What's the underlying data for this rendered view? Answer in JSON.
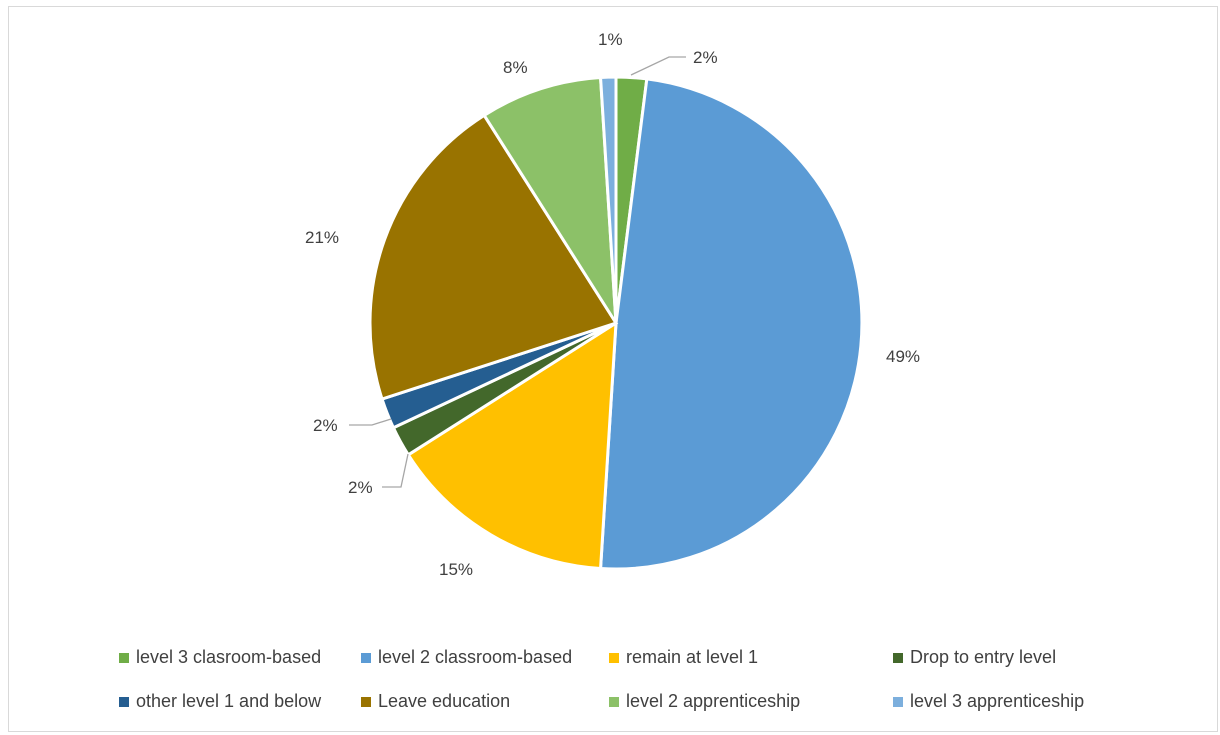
{
  "chart_data": {
    "type": "pie",
    "start_angle_deg": 0,
    "direction": "clockwise",
    "slices": [
      {
        "name": "level 3 clasroom-based",
        "value": 2,
        "label": "2%",
        "color": "#70ad47"
      },
      {
        "name": "level 2 classroom-based",
        "value": 49,
        "label": "49%",
        "color": "#5b9bd5"
      },
      {
        "name": "remain at level 1",
        "value": 15,
        "label": "15%",
        "color": "#ffc000"
      },
      {
        "name": "Drop to entry level",
        "value": 2,
        "label": "2%",
        "color": "#43682b"
      },
      {
        "name": "other level 1 and below",
        "value": 2,
        "label": "2%",
        "color": "#255e91"
      },
      {
        "name": "Leave education",
        "value": 21,
        "label": "21%",
        "color": "#997300"
      },
      {
        "name": "level 2 apprenticeship",
        "value": 8,
        "label": "8%",
        "color": "#8cc168"
      },
      {
        "name": "level 3 apprenticeship",
        "value": 1,
        "label": "1%",
        "color": "#7cafdd"
      }
    ],
    "legend_position": "bottom"
  }
}
